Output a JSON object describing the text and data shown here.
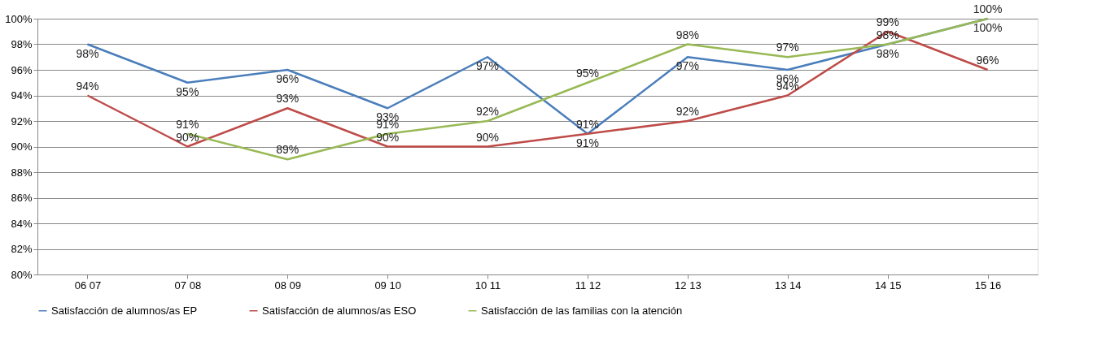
{
  "chart_data": {
    "type": "line",
    "categories": [
      "06 07",
      "07 08",
      "08  09",
      "09 10",
      "10 11",
      "11 12",
      "12 13",
      "13 14",
      "14 15",
      "15 16"
    ],
    "series": [
      {
        "name": "Satisfacción de alumnos/as EP",
        "color": "#4a7ebb",
        "values": [
          98,
          95,
          96,
          93,
          97,
          91,
          97,
          96,
          98,
          100
        ],
        "value_labels": [
          "98%",
          "95%",
          "96%",
          "93%",
          "97%",
          "91%",
          "97%",
          "96%",
          "98%",
          "100%"
        ]
      },
      {
        "name": "Satisfacción de alumnos/as ESO",
        "color": "#be4b48",
        "values": [
          94,
          90,
          93,
          90,
          90,
          91,
          92,
          94,
          99,
          96
        ],
        "value_labels": [
          "94%",
          "90%",
          "93%",
          "90%",
          "90%",
          "91%",
          "92%",
          "94%",
          "99%",
          "96%"
        ]
      },
      {
        "name": "Satisfacción de las familias con la atención",
        "color": "#98b954",
        "values": [
          null,
          91,
          89,
          91,
          92,
          95,
          98,
          97,
          98,
          100
        ],
        "value_labels": [
          null,
          "91%",
          "89%",
          "91%",
          "92%",
          "95%",
          "98%",
          "97%",
          "98%",
          "100%"
        ]
      }
    ],
    "ylim": [
      80,
      100
    ],
    "yticks": [
      {
        "value": 80,
        "label": "80%"
      },
      {
        "value": 82,
        "label": "82%"
      },
      {
        "value": 84,
        "label": "84%"
      },
      {
        "value": 86,
        "label": "86%"
      },
      {
        "value": 88,
        "label": "88%"
      },
      {
        "value": 90,
        "label": "90%"
      },
      {
        "value": 92,
        "label": "92%"
      },
      {
        "value": 94,
        "label": "94%"
      },
      {
        "value": 96,
        "label": "96%"
      },
      {
        "value": 98,
        "label": "98%"
      },
      {
        "value": 100,
        "label": "100%"
      }
    ],
    "grid": "y",
    "legend": "bottom",
    "marker": "none",
    "line_style": "solid"
  }
}
